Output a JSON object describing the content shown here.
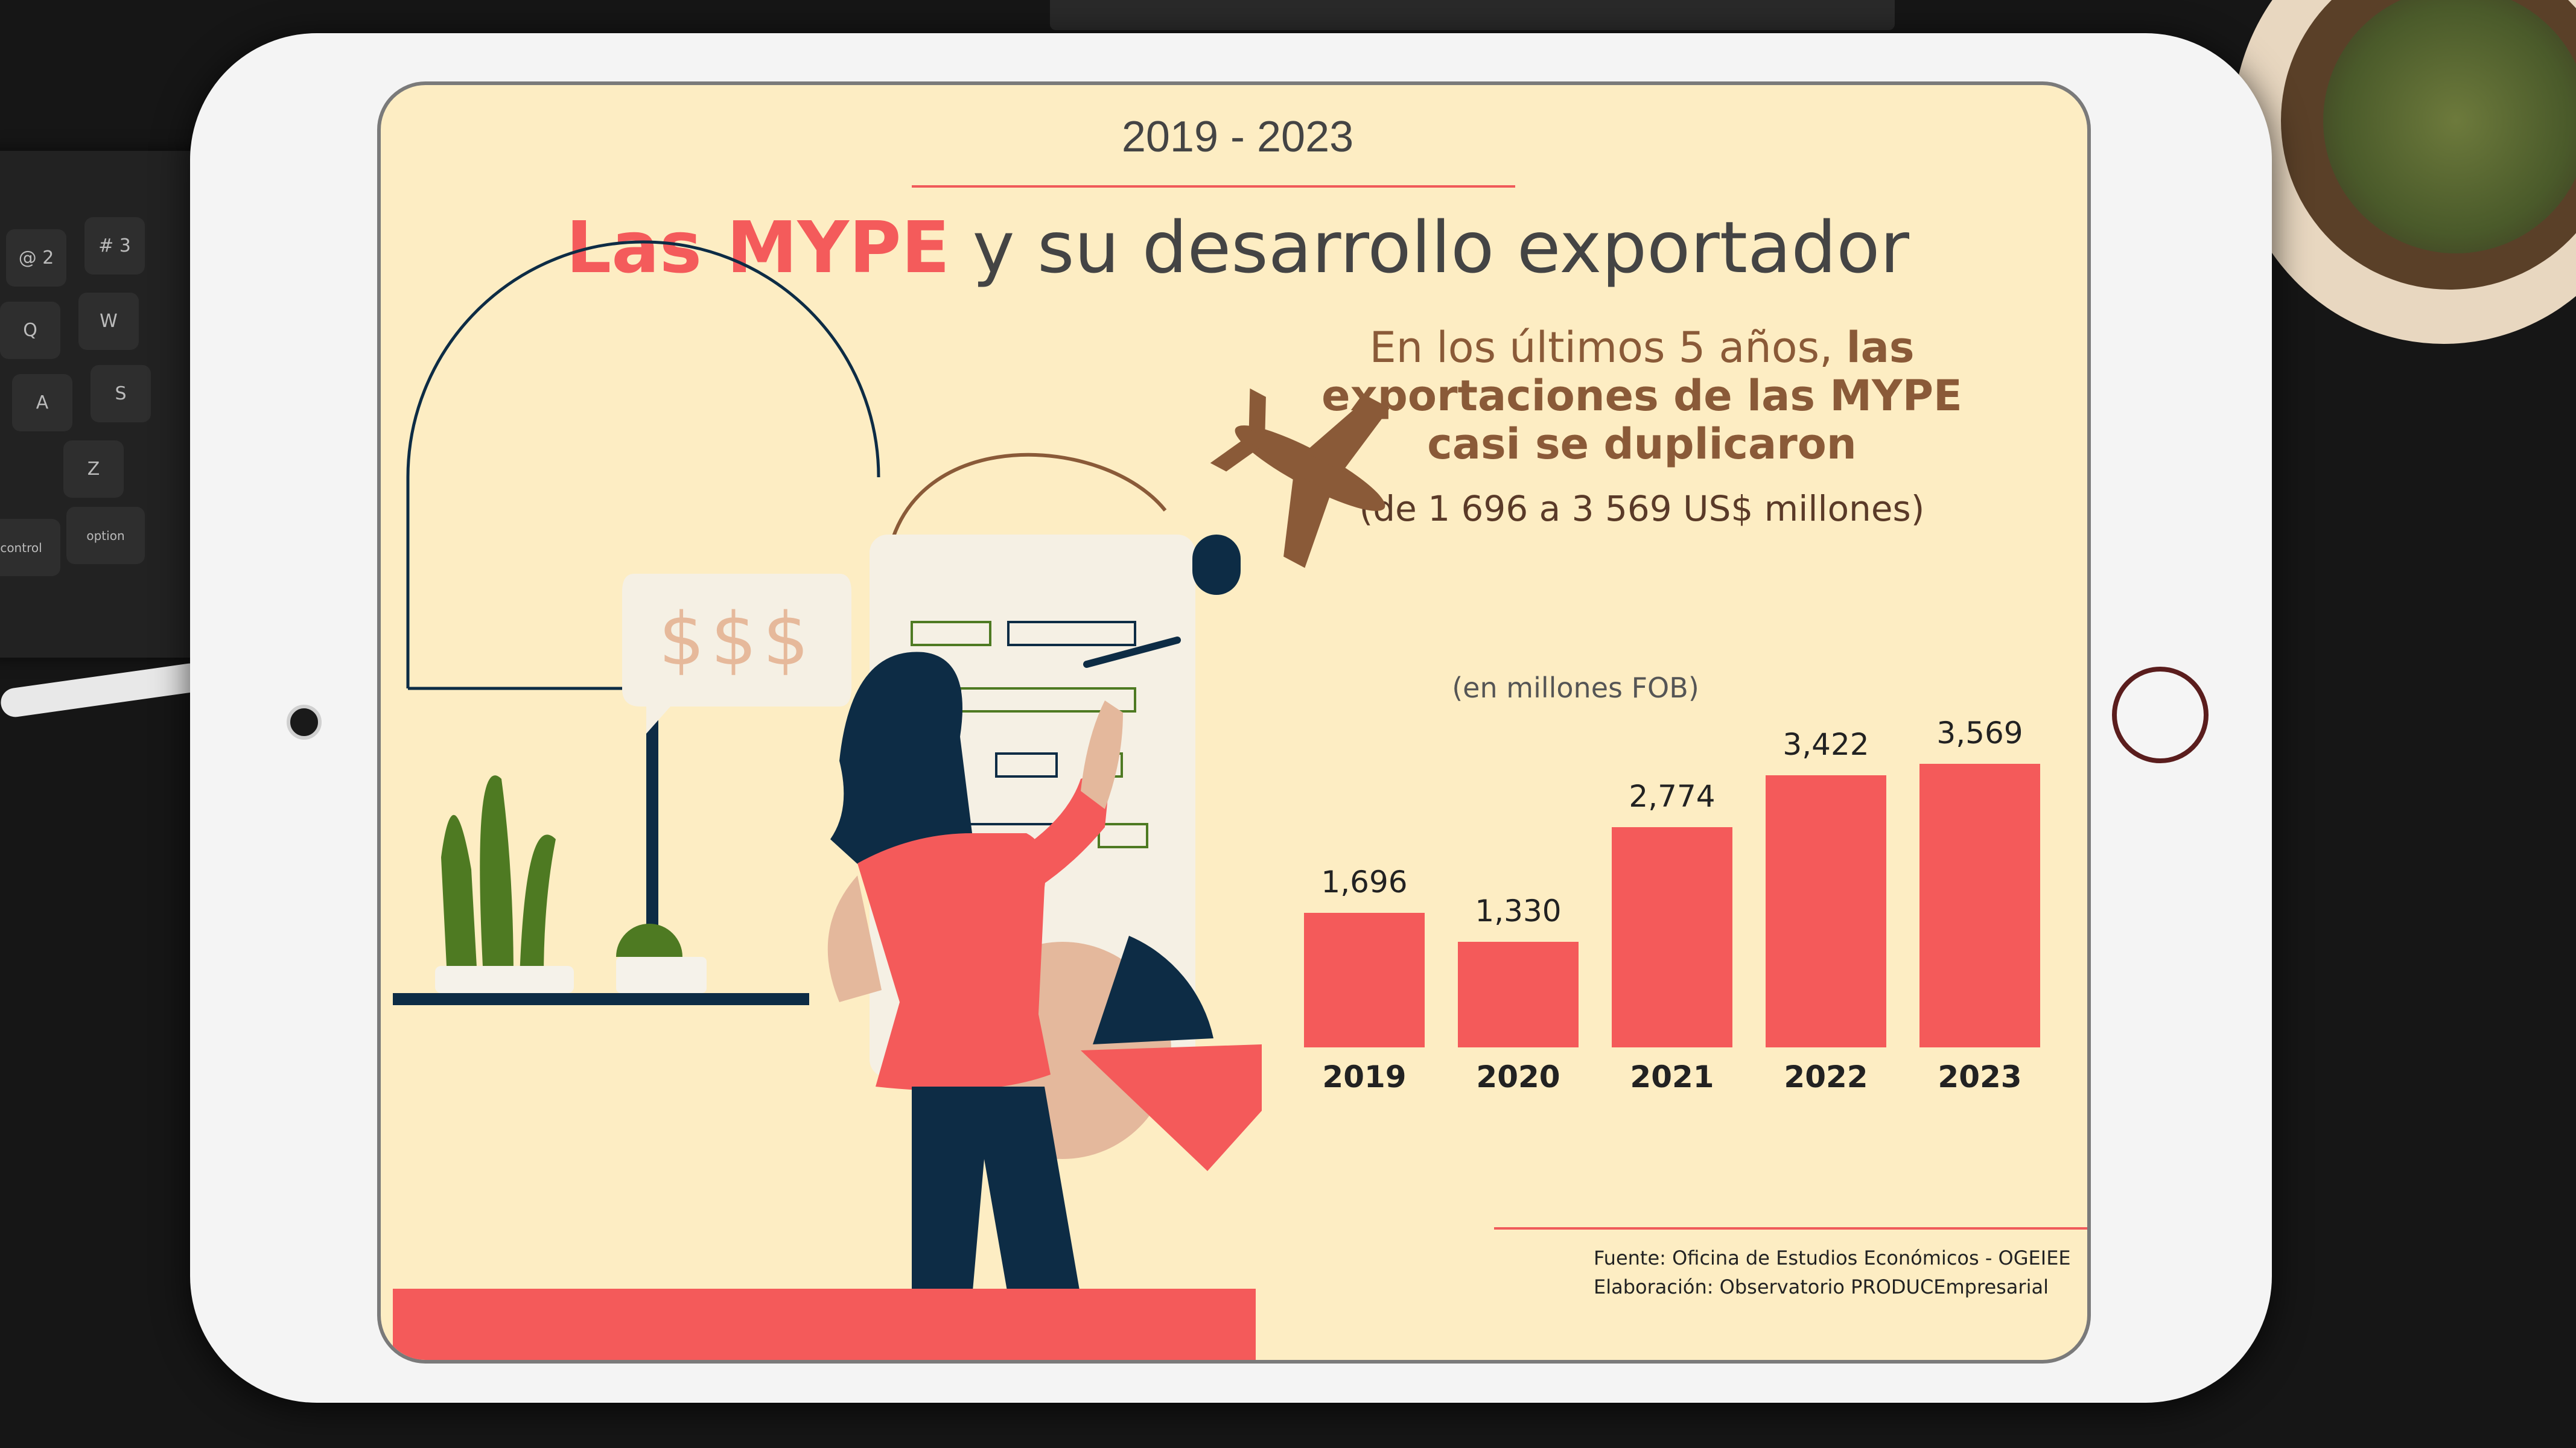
{
  "header": {
    "years": "2019 - 2023",
    "title_highlight": "Las MYPE",
    "title_rest": "y su desarrollo  exportador"
  },
  "headline": {
    "lead": "En los últimos 5 años,",
    "bold": "las exportaciones de las MYPE casi se duplicaron",
    "range": "(de 1 696 a 3 569 US$ millones)"
  },
  "illustration": {
    "speech_bubble": "$$$"
  },
  "chart_data": {
    "type": "bar",
    "subtitle": "(en millones FOB)",
    "categories": [
      "2019",
      "2020",
      "2021",
      "2022",
      "2023"
    ],
    "values": [
      1696,
      1330,
      2774,
      3422,
      3569
    ],
    "value_labels": [
      "1,696",
      "1,330",
      "2,774",
      "3,422",
      "3,569"
    ],
    "ylim": [
      0,
      3569
    ],
    "bar_color": "#f45a5a",
    "grid": false,
    "axes_visible": false
  },
  "source": {
    "line1": "Fuente: Oficina de Estudios Económicos - OGEIEE",
    "line2": "Elaboración: Observatorio PRODUCEmpresarial"
  },
  "colors": {
    "background": "#fdedc3",
    "accent": "#f45a5a",
    "headline": "#8a5a38",
    "navy": "#0d2c45"
  },
  "keyboard": {
    "keys": [
      "@ 2",
      "# 3",
      "Q",
      "W",
      "A",
      "S",
      "Z",
      "control",
      "option"
    ]
  }
}
